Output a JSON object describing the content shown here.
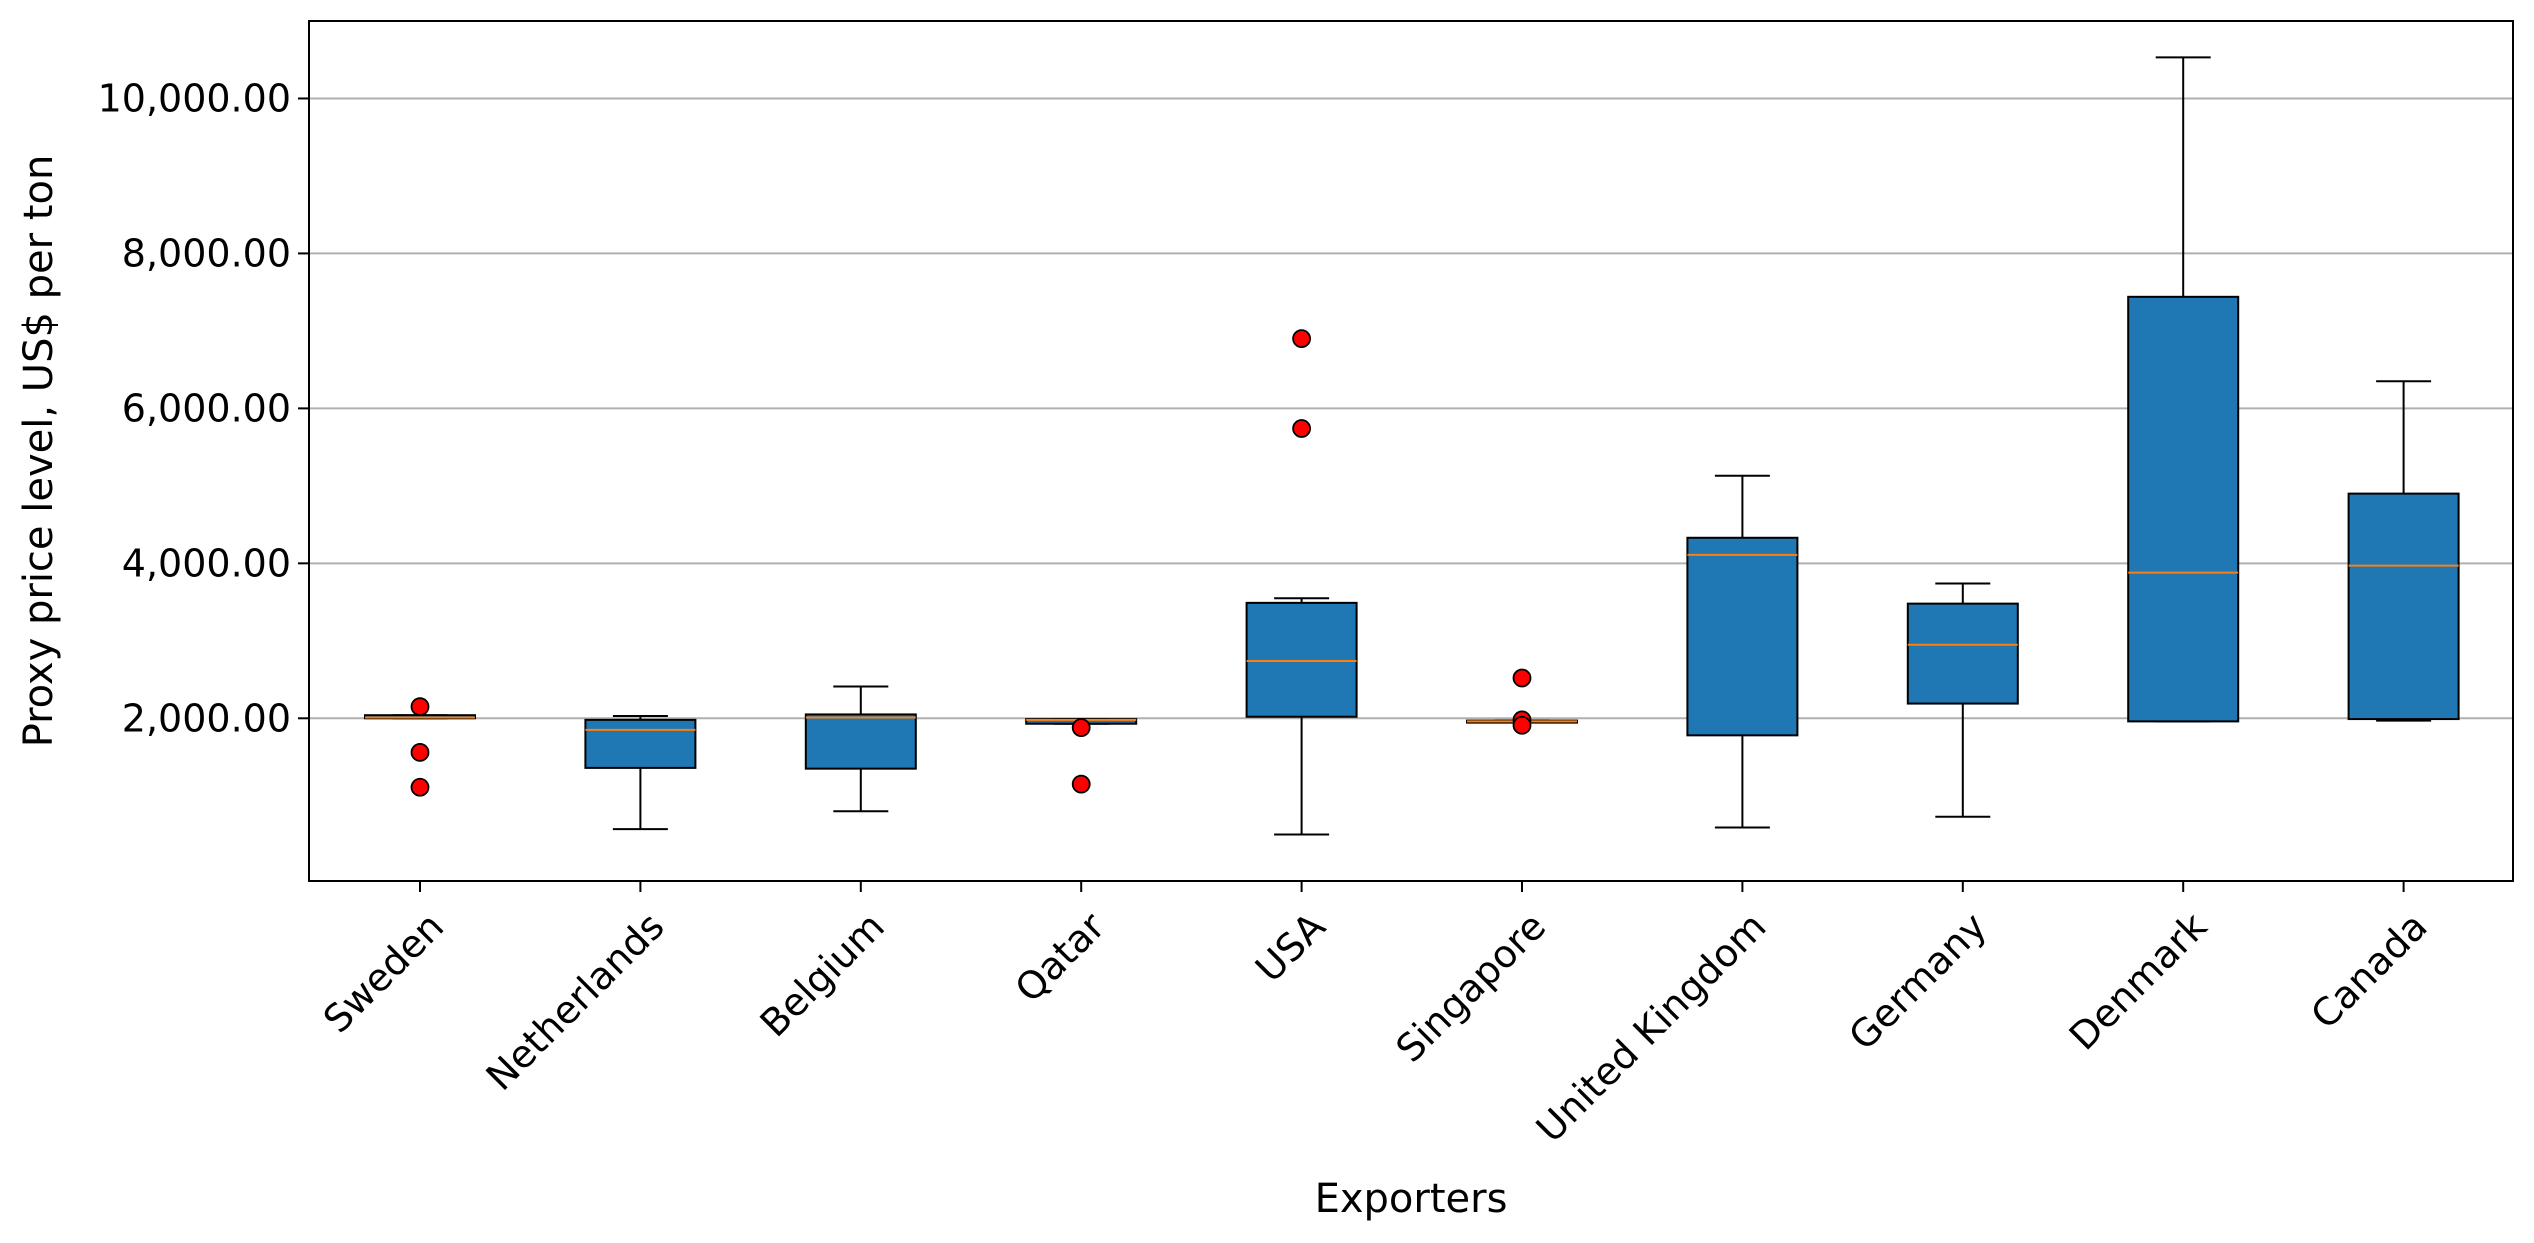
{
  "chart_data": {
    "type": "boxplot",
    "title": "",
    "xlabel": "Exporters",
    "ylabel": "Proxy price level, US$ per ton",
    "ylim": [
      -100,
      11000
    ],
    "yticks": [
      2000,
      4000,
      6000,
      8000,
      10000
    ],
    "ytick_labels": [
      "2,000.00",
      "4,000.00",
      "6,000.00",
      "8,000.00",
      "10,000.00"
    ],
    "grid": "y",
    "colors": {
      "box_fill": "#1f77b4",
      "box_edge": "#000000",
      "median": "#ff7f0e",
      "outlier_fill": "#ff0000",
      "grid": "#b0b0b0"
    },
    "categories": [
      "Sweden",
      "Netherlands",
      "Belgium",
      "Qatar",
      "USA",
      "Singapore",
      "United Kingdom",
      "Germany",
      "Denmark",
      "Canada"
    ],
    "boxes": [
      {
        "whisker_low": 2000,
        "q1": 2000,
        "median": 2010,
        "q3": 2040,
        "whisker_high": 2040,
        "outliers": [
          2150,
          1560,
          1110
        ]
      },
      {
        "whisker_low": 570,
        "q1": 1360,
        "median": 1850,
        "q3": 1980,
        "whisker_high": 2030,
        "outliers": []
      },
      {
        "whisker_low": 800,
        "q1": 1350,
        "median": 2010,
        "q3": 2050,
        "whisker_high": 2410,
        "outliers": []
      },
      {
        "whisker_low": 1930,
        "q1": 1930,
        "median": 1980,
        "q3": 1990,
        "whisker_high": 1990,
        "outliers": [
          1880,
          1150
        ]
      },
      {
        "whisker_low": 500,
        "q1": 2020,
        "median": 2740,
        "q3": 3490,
        "whisker_high": 3550,
        "outliers": [
          6900,
          5740
        ]
      },
      {
        "whisker_low": 1950,
        "q1": 1950,
        "median": 1960,
        "q3": 1970,
        "whisker_high": 1970,
        "outliers": [
          2520,
          1980,
          1910
        ]
      },
      {
        "whisker_low": 590,
        "q1": 1780,
        "median": 4110,
        "q3": 4330,
        "whisker_high": 5130,
        "outliers": []
      },
      {
        "whisker_low": 730,
        "q1": 2190,
        "median": 2950,
        "q3": 3480,
        "whisker_high": 3740,
        "outliers": []
      },
      {
        "whisker_low": 1960,
        "q1": 1960,
        "median": 3880,
        "q3": 7440,
        "whisker_high": 10530,
        "outliers": []
      },
      {
        "whisker_low": 1970,
        "q1": 1990,
        "median": 3970,
        "q3": 4900,
        "whisker_high": 6350,
        "outliers": []
      }
    ]
  }
}
